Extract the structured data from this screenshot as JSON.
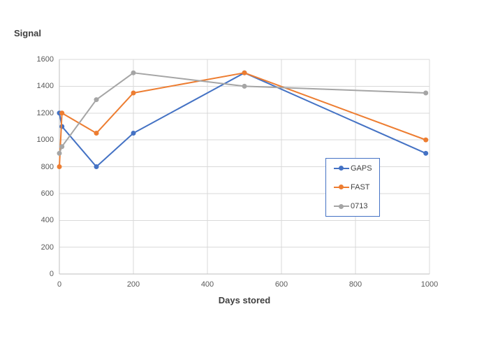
{
  "chart_data": {
    "type": "line",
    "title": "Signal",
    "xlabel": "Days stored",
    "ylabel": "Signal",
    "xlim": [
      0,
      1000
    ],
    "ylim": [
      0,
      1600
    ],
    "x_ticks": [
      0,
      200,
      400,
      600,
      800,
      1000
    ],
    "y_ticks": [
      0,
      200,
      400,
      600,
      800,
      1000,
      1200,
      1400,
      1600
    ],
    "grid": true,
    "legend_position": "middle-right",
    "legend_entries": [
      "GAPS",
      "FAST",
      "0713"
    ],
    "series": [
      {
        "name": "GAPS",
        "color": "#4472C4",
        "points": [
          [
            0,
            1200
          ],
          [
            7,
            1100
          ],
          [
            100,
            800
          ],
          [
            200,
            1050
          ],
          [
            500,
            1500
          ],
          [
            990,
            900
          ]
        ]
      },
      {
        "name": "FAST",
        "color": "#ED7D31",
        "points": [
          [
            0,
            800
          ],
          [
            7,
            1200
          ],
          [
            100,
            1050
          ],
          [
            200,
            1350
          ],
          [
            500,
            1500
          ],
          [
            990,
            1000
          ]
        ]
      },
      {
        "name": "0713",
        "color": "#A5A5A5",
        "points": [
          [
            0,
            900
          ],
          [
            7,
            950
          ],
          [
            100,
            1300
          ],
          [
            200,
            1500
          ],
          [
            500,
            1400
          ],
          [
            990,
            1350
          ]
        ]
      }
    ]
  },
  "colors": {
    "background": "#FFFFFF",
    "gridline": "#D9D9D9",
    "axis_line": "#BFBFBF",
    "tick_label": "#595959",
    "title_text": "#404040",
    "legend_border": "#4472C4"
  }
}
